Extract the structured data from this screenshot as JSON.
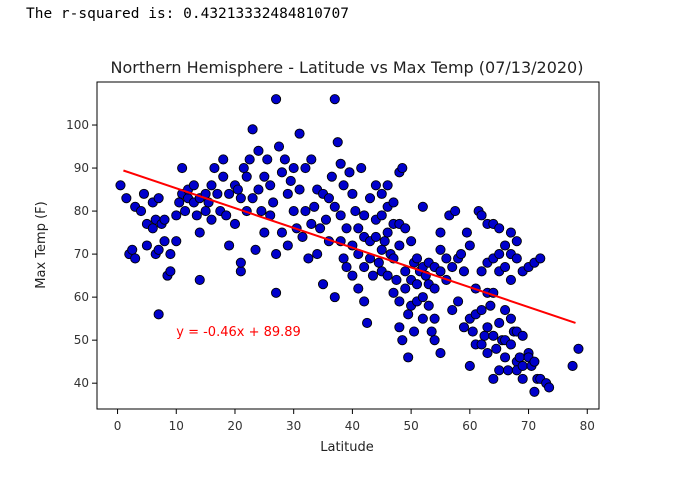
{
  "output": {
    "text": "The r-squared is: 0.43213332484810707"
  },
  "chart_data": {
    "type": "scatter",
    "title": "Northern Hemisphere - Latitude vs Max Temp (07/13/2020)",
    "xlabel": "Latitude",
    "ylabel": "Max Temp (F)",
    "xlim": [
      -3.5,
      82
    ],
    "ylim": [
      34,
      110
    ],
    "xticks": [
      0,
      10,
      20,
      30,
      40,
      50,
      60,
      70,
      80
    ],
    "yticks": [
      40,
      50,
      60,
      70,
      80,
      90,
      100
    ],
    "grid": false,
    "marker_color": "#0000cc",
    "marker_edge": "#000000",
    "line_color": "#ff0000",
    "regression": {
      "slope": -0.46,
      "intercept": 89.89,
      "x_range": [
        1,
        78
      ],
      "equation_text": "y = -0.46x + 89.89",
      "equation_at": [
        10,
        51
      ]
    },
    "points": [
      [
        0.5,
        86
      ],
      [
        1.5,
        83
      ],
      [
        2,
        70
      ],
      [
        2.5,
        71
      ],
      [
        3,
        69
      ],
      [
        3,
        81
      ],
      [
        4,
        80
      ],
      [
        4.5,
        84
      ],
      [
        5,
        72
      ],
      [
        5,
        77
      ],
      [
        6,
        82
      ],
      [
        6,
        76
      ],
      [
        6.5,
        78
      ],
      [
        6.5,
        70
      ],
      [
        7,
        71
      ],
      [
        7,
        83
      ],
      [
        7.5,
        77
      ],
      [
        8,
        73
      ],
      [
        8,
        78
      ],
      [
        8.5,
        65
      ],
      [
        9,
        66
      ],
      [
        9,
        70
      ],
      [
        7,
        56
      ],
      [
        10,
        79
      ],
      [
        10,
        73
      ],
      [
        10.5,
        82
      ],
      [
        11,
        84
      ],
      [
        11,
        90
      ],
      [
        11.5,
        80
      ],
      [
        12,
        83
      ],
      [
        12,
        85
      ],
      [
        13,
        82
      ],
      [
        13,
        86
      ],
      [
        13.5,
        79
      ],
      [
        14,
        75
      ],
      [
        14,
        83
      ],
      [
        14,
        64
      ],
      [
        15,
        80
      ],
      [
        15,
        84
      ],
      [
        15.5,
        82
      ],
      [
        16,
        78
      ],
      [
        16,
        86
      ],
      [
        16.5,
        90
      ],
      [
        17,
        84
      ],
      [
        17.5,
        80
      ],
      [
        18,
        88
      ],
      [
        18,
        92
      ],
      [
        18.5,
        79
      ],
      [
        19,
        72
      ],
      [
        19,
        84
      ],
      [
        20,
        77
      ],
      [
        20,
        86
      ],
      [
        20.5,
        85
      ],
      [
        21,
        66
      ],
      [
        21,
        68
      ],
      [
        21,
        83
      ],
      [
        21.5,
        90
      ],
      [
        22,
        88
      ],
      [
        22,
        80
      ],
      [
        22.5,
        92
      ],
      [
        23,
        99
      ],
      [
        23,
        83
      ],
      [
        23.5,
        71
      ],
      [
        24,
        85
      ],
      [
        24,
        94
      ],
      [
        24.5,
        80
      ],
      [
        25,
        88
      ],
      [
        25,
        75
      ],
      [
        25.5,
        92
      ],
      [
        26,
        79
      ],
      [
        26,
        86
      ],
      [
        26.5,
        82
      ],
      [
        27,
        70
      ],
      [
        27,
        61
      ],
      [
        27,
        106
      ],
      [
        27.5,
        95
      ],
      [
        28,
        75
      ],
      [
        28,
        89
      ],
      [
        28.5,
        92
      ],
      [
        29,
        84
      ],
      [
        29,
        72
      ],
      [
        29.5,
        87
      ],
      [
        30,
        80
      ],
      [
        30,
        90
      ],
      [
        30.5,
        76
      ],
      [
        31,
        98
      ],
      [
        31,
        85
      ],
      [
        31.5,
        74
      ],
      [
        32,
        90
      ],
      [
        32,
        80
      ],
      [
        32.5,
        69
      ],
      [
        33,
        92
      ],
      [
        33,
        77
      ],
      [
        33.5,
        81
      ],
      [
        34,
        85
      ],
      [
        34,
        70
      ],
      [
        34.5,
        76
      ],
      [
        35,
        84
      ],
      [
        35,
        63
      ],
      [
        35.5,
        78
      ],
      [
        36,
        83
      ],
      [
        36,
        73
      ],
      [
        36.5,
        88
      ],
      [
        37,
        81
      ],
      [
        37,
        60
      ],
      [
        37,
        106
      ],
      [
        37.5,
        96
      ],
      [
        38,
        73
      ],
      [
        38,
        91
      ],
      [
        38,
        79
      ],
      [
        38.5,
        86
      ],
      [
        38.5,
        69
      ],
      [
        39,
        76
      ],
      [
        39,
        67
      ],
      [
        39.5,
        89
      ],
      [
        40,
        84
      ],
      [
        40,
        72
      ],
      [
        40,
        65
      ],
      [
        40.5,
        80
      ],
      [
        41,
        76
      ],
      [
        41,
        70
      ],
      [
        41,
        62
      ],
      [
        41.5,
        90
      ],
      [
        42,
        79
      ],
      [
        42,
        74
      ],
      [
        42,
        67
      ],
      [
        42,
        59
      ],
      [
        42.5,
        54
      ],
      [
        43,
        83
      ],
      [
        43,
        73
      ],
      [
        43,
        69
      ],
      [
        43.5,
        65
      ],
      [
        44,
        86
      ],
      [
        44,
        78
      ],
      [
        44,
        74
      ],
      [
        44.5,
        68
      ],
      [
        45,
        84
      ],
      [
        45,
        79
      ],
      [
        45,
        71
      ],
      [
        45,
        66
      ],
      [
        45.5,
        73
      ],
      [
        46,
        86
      ],
      [
        46,
        81
      ],
      [
        46,
        75
      ],
      [
        46,
        65
      ],
      [
        46.5,
        70
      ],
      [
        47,
        82
      ],
      [
        47,
        77
      ],
      [
        47,
        69
      ],
      [
        47,
        61
      ],
      [
        47.5,
        64
      ],
      [
        48,
        89
      ],
      [
        48,
        77
      ],
      [
        48,
        72
      ],
      [
        48,
        59
      ],
      [
        48,
        53
      ],
      [
        48.5,
        90
      ],
      [
        48.5,
        50
      ],
      [
        49,
        76
      ],
      [
        49,
        66
      ],
      [
        49,
        62
      ],
      [
        49.5,
        56
      ],
      [
        49.5,
        46
      ],
      [
        50,
        73
      ],
      [
        50,
        64
      ],
      [
        50,
        58
      ],
      [
        50.5,
        68
      ],
      [
        50.5,
        52
      ],
      [
        51,
        69
      ],
      [
        51,
        63
      ],
      [
        51,
        59
      ],
      [
        51.5,
        66
      ],
      [
        52,
        81
      ],
      [
        52,
        67
      ],
      [
        52,
        60
      ],
      [
        52,
        55
      ],
      [
        52.5,
        65
      ],
      [
        53,
        68
      ],
      [
        53,
        63
      ],
      [
        53,
        58
      ],
      [
        53.5,
        52
      ],
      [
        54,
        67
      ],
      [
        54,
        62
      ],
      [
        54,
        55
      ],
      [
        54,
        50
      ],
      [
        55,
        75
      ],
      [
        55,
        71
      ],
      [
        55,
        66
      ],
      [
        55,
        47
      ],
      [
        56,
        69
      ],
      [
        56,
        64
      ],
      [
        56.5,
        79
      ],
      [
        57,
        67
      ],
      [
        57,
        57
      ],
      [
        57.5,
        80
      ],
      [
        58,
        69
      ],
      [
        58,
        59
      ],
      [
        58.5,
        70
      ],
      [
        59,
        66
      ],
      [
        59,
        53
      ],
      [
        59.5,
        75
      ],
      [
        60,
        72
      ],
      [
        60,
        55
      ],
      [
        60,
        44
      ],
      [
        60.5,
        52
      ],
      [
        61,
        62
      ],
      [
        61,
        56
      ],
      [
        61,
        49
      ],
      [
        61.5,
        80
      ],
      [
        62,
        79
      ],
      [
        62,
        66
      ],
      [
        62,
        57
      ],
      [
        62,
        49
      ],
      [
        62.5,
        51
      ],
      [
        63,
        77
      ],
      [
        63,
        68
      ],
      [
        63,
        61
      ],
      [
        63,
        53
      ],
      [
        63,
        47
      ],
      [
        63.5,
        58
      ],
      [
        64,
        77
      ],
      [
        64,
        69
      ],
      [
        64,
        61
      ],
      [
        64,
        51
      ],
      [
        64,
        41
      ],
      [
        64.5,
        48
      ],
      [
        65,
        76
      ],
      [
        65,
        70
      ],
      [
        65,
        66
      ],
      [
        65,
        54
      ],
      [
        65,
        43
      ],
      [
        65.5,
        50
      ],
      [
        66,
        72
      ],
      [
        66,
        67
      ],
      [
        66,
        57
      ],
      [
        66,
        50
      ],
      [
        66,
        46
      ],
      [
        66.5,
        43
      ],
      [
        67,
        75
      ],
      [
        67,
        70
      ],
      [
        67,
        64
      ],
      [
        67,
        55
      ],
      [
        67,
        49
      ],
      [
        67.5,
        52
      ],
      [
        68,
        73
      ],
      [
        68,
        69
      ],
      [
        68,
        52
      ],
      [
        68,
        45
      ],
      [
        68,
        43
      ],
      [
        68.5,
        46
      ],
      [
        69,
        66
      ],
      [
        69,
        51
      ],
      [
        69,
        44
      ],
      [
        69,
        41
      ],
      [
        70,
        67
      ],
      [
        70,
        47
      ],
      [
        70,
        46
      ],
      [
        70.5,
        44
      ],
      [
        71,
        68
      ],
      [
        71,
        45
      ],
      [
        71,
        38
      ],
      [
        71.5,
        41
      ],
      [
        72,
        69
      ],
      [
        72,
        41
      ],
      [
        73,
        40
      ],
      [
        73.5,
        39
      ],
      [
        77.5,
        44
      ],
      [
        78.5,
        48
      ]
    ]
  }
}
